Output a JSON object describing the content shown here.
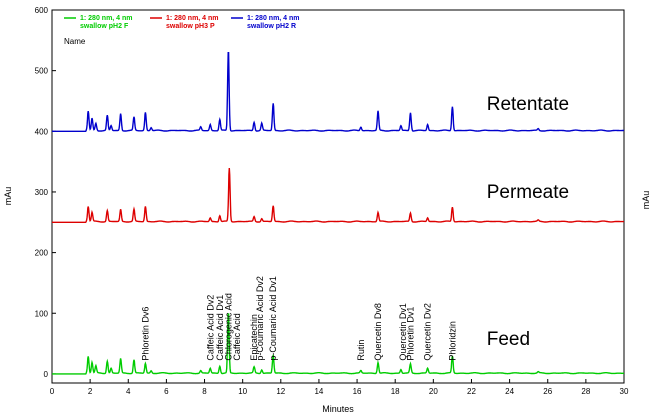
{
  "chart_data": {
    "type": "line",
    "xlabel": "Minutes",
    "ylabel_left": "mAu",
    "ylabel_right": "mAu",
    "xlim": [
      0,
      30
    ],
    "ylim": [
      -15,
      600
    ],
    "x_ticks": [
      0,
      2,
      4,
      6,
      8,
      10,
      12,
      14,
      16,
      18,
      20,
      22,
      24,
      26,
      28,
      30
    ],
    "y_ticks": [
      0,
      100,
      200,
      300,
      400,
      500,
      600
    ],
    "x_tick_labels": [
      "0",
      "2",
      "4",
      "6",
      "8",
      "10",
      "12",
      "14",
      "16",
      "18",
      "20",
      "22",
      "24",
      "26",
      "28",
      "30"
    ],
    "y_tick_labels": [
      "0",
      "100",
      "200",
      "300",
      "400",
      "500",
      "600"
    ],
    "legend": {
      "position": "top-left",
      "title": "Name",
      "entries": [
        {
          "line1": "1: 280 nm, 4 nm",
          "line2": "swallow pH2 F",
          "color": "#00cc00"
        },
        {
          "line1": "1: 280 nm, 4 nm",
          "line2": "swallow pH3 P",
          "color": "#dd0000"
        },
        {
          "line1": "1: 280 nm, 4 nm",
          "line2": "swallow pH2 R",
          "color": "#0000cc"
        }
      ]
    },
    "series": [
      {
        "name": "swallow pH2 F",
        "label": "Feed",
        "color": "#00cc00",
        "baseline": 0,
        "peaks": [
          [
            1.9,
            28
          ],
          [
            2.1,
            18
          ],
          [
            2.3,
            12
          ],
          [
            2.9,
            20
          ],
          [
            3.1,
            8
          ],
          [
            3.6,
            24
          ],
          [
            4.3,
            22
          ],
          [
            4.9,
            16
          ],
          [
            5.2,
            4
          ],
          [
            7.8,
            4
          ],
          [
            8.3,
            8
          ],
          [
            8.8,
            12
          ],
          [
            9.25,
            100
          ],
          [
            10.6,
            10
          ],
          [
            11.0,
            6
          ],
          [
            11.6,
            30
          ],
          [
            16.2,
            4
          ],
          [
            17.1,
            18
          ],
          [
            18.3,
            6
          ],
          [
            18.8,
            15
          ],
          [
            19.7,
            8
          ],
          [
            21.0,
            28
          ],
          [
            25.5,
            2
          ]
        ],
        "label_x": 22.8,
        "label_y": 48
      },
      {
        "name": "swallow pH3 P",
        "label": "Permeate",
        "color": "#dd0000",
        "baseline": 250,
        "peaks": [
          [
            1.9,
            25
          ],
          [
            2.1,
            15
          ],
          [
            2.9,
            18
          ],
          [
            3.6,
            20
          ],
          [
            4.3,
            20
          ],
          [
            4.9,
            25
          ],
          [
            8.3,
            6
          ],
          [
            8.8,
            10
          ],
          [
            9.3,
            88
          ],
          [
            10.6,
            8
          ],
          [
            11.0,
            5
          ],
          [
            11.6,
            26
          ],
          [
            17.1,
            15
          ],
          [
            18.8,
            14
          ],
          [
            19.7,
            6
          ],
          [
            21.0,
            24
          ],
          [
            25.5,
            2
          ]
        ],
        "label_x": 22.8,
        "label_y": 290
      },
      {
        "name": "swallow pH2 R",
        "label": "Retentate",
        "color": "#0000cc",
        "baseline": 400,
        "peaks": [
          [
            1.9,
            32
          ],
          [
            2.1,
            20
          ],
          [
            2.3,
            12
          ],
          [
            2.9,
            25
          ],
          [
            3.1,
            8
          ],
          [
            3.6,
            28
          ],
          [
            4.3,
            22
          ],
          [
            4.9,
            30
          ],
          [
            5.2,
            5
          ],
          [
            7.8,
            6
          ],
          [
            8.3,
            10
          ],
          [
            8.8,
            18
          ],
          [
            9.25,
            133
          ],
          [
            10.6,
            14
          ],
          [
            11.0,
            12
          ],
          [
            11.6,
            45
          ],
          [
            16.2,
            6
          ],
          [
            17.1,
            32
          ],
          [
            18.3,
            8
          ],
          [
            18.8,
            30
          ],
          [
            19.7,
            10
          ],
          [
            21.0,
            40
          ],
          [
            25.5,
            3
          ]
        ],
        "label_x": 22.8,
        "label_y": 435
      }
    ],
    "peak_annotations": [
      {
        "text": "Phloretin Dv6",
        "x": 4.9
      },
      {
        "text": "Caffeic Acid Dv2",
        "x": 8.3
      },
      {
        "text": "Caffeic Acid Dv1",
        "x": 8.8
      },
      {
        "text": "Chlorogenic Acid",
        "x": 9.25
      },
      {
        "text": "Caffeic Acid",
        "x": 9.7
      },
      {
        "text": "Epicatechin",
        "x": 10.6
      },
      {
        "text": "p-Coumaric Acid Dv2",
        "x": 10.9
      },
      {
        "text": "p-Coumaric Acid Dv1",
        "x": 11.6
      },
      {
        "text": "Rutin",
        "x": 16.2
      },
      {
        "text": "Quercetin Dv8",
        "x": 17.1
      },
      {
        "text": "Quercetin Dv1",
        "x": 18.4
      },
      {
        "text": "Phloretin Dv1",
        "x": 18.8
      },
      {
        "text": "Quercetin Dv2",
        "x": 19.7
      },
      {
        "text": "Phloridzin",
        "x": 21.0
      }
    ]
  }
}
